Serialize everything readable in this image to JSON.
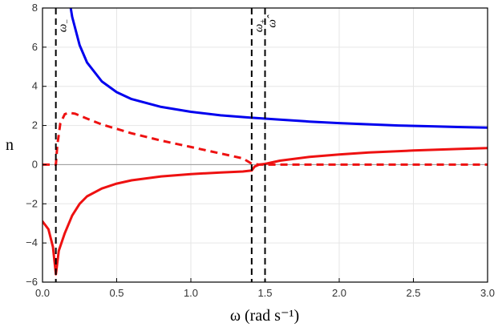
{
  "chart_data": {
    "type": "line",
    "title": "",
    "xlabel": "ω (rad s⁻¹)",
    "ylabel": "n",
    "xlim": [
      0,
      3
    ],
    "ylim": [
      -6,
      8
    ],
    "xticks": [
      "0.0",
      "0.5",
      "1.0",
      "1.5",
      "2.0",
      "2.5",
      "3.0"
    ],
    "yticks": [
      "−6",
      "−4",
      "−2",
      "0",
      "2",
      "4",
      "6",
      "8"
    ],
    "grid": true,
    "legend": "none",
    "vertical_lines": [
      {
        "x": 0.09,
        "label": "ω",
        "sub": "−"
      },
      {
        "x": 1.41,
        "label": "ω",
        "sub": "+"
      },
      {
        "x": 1.5,
        "label": "ω̂",
        "sub": ""
      }
    ],
    "series": [
      {
        "color": "#0000ee",
        "style": "solid",
        "points": [
          [
            0.19,
            8.0
          ],
          [
            0.2,
            7.55
          ],
          [
            0.25,
            6.1
          ],
          [
            0.3,
            5.22
          ],
          [
            0.4,
            4.25
          ],
          [
            0.5,
            3.7
          ],
          [
            0.6,
            3.35
          ],
          [
            0.8,
            2.95
          ],
          [
            1.0,
            2.7
          ],
          [
            1.2,
            2.52
          ],
          [
            1.4,
            2.4
          ],
          [
            1.6,
            2.3
          ],
          [
            1.8,
            2.2
          ],
          [
            2.0,
            2.12
          ],
          [
            2.2,
            2.06
          ],
          [
            2.4,
            2.0
          ],
          [
            2.6,
            1.96
          ],
          [
            2.8,
            1.92
          ],
          [
            3.0,
            1.89
          ]
        ]
      },
      {
        "color": "#ee1111",
        "style": "solid",
        "points": [
          [
            0.0,
            -2.9
          ],
          [
            0.04,
            -3.3
          ],
          [
            0.07,
            -4.2
          ],
          [
            0.09,
            -5.6
          ],
          [
            0.11,
            -4.4
          ],
          [
            0.15,
            -3.5
          ],
          [
            0.2,
            -2.6
          ],
          [
            0.25,
            -2.0
          ],
          [
            0.3,
            -1.62
          ],
          [
            0.4,
            -1.22
          ],
          [
            0.5,
            -0.97
          ],
          [
            0.6,
            -0.8
          ],
          [
            0.8,
            -0.6
          ],
          [
            1.0,
            -0.48
          ],
          [
            1.2,
            -0.4
          ],
          [
            1.35,
            -0.35
          ],
          [
            1.41,
            -0.3
          ],
          [
            1.43,
            -0.1
          ],
          [
            1.46,
            0.0
          ],
          [
            1.5,
            0.04
          ],
          [
            1.6,
            0.2
          ],
          [
            1.8,
            0.4
          ],
          [
            2.0,
            0.52
          ],
          [
            2.2,
            0.62
          ],
          [
            2.5,
            0.72
          ],
          [
            2.8,
            0.8
          ],
          [
            3.0,
            0.85
          ]
        ]
      },
      {
        "color": "#ee1111",
        "style": "dashed",
        "points": [
          [
            0.0,
            0.0
          ],
          [
            0.09,
            0.0
          ],
          [
            0.1,
            1.0
          ],
          [
            0.12,
            2.1
          ],
          [
            0.15,
            2.58
          ],
          [
            0.18,
            2.65
          ],
          [
            0.22,
            2.6
          ],
          [
            0.3,
            2.35
          ],
          [
            0.4,
            2.05
          ],
          [
            0.6,
            1.6
          ],
          [
            0.8,
            1.23
          ],
          [
            1.0,
            0.9
          ],
          [
            1.2,
            0.57
          ],
          [
            1.35,
            0.32
          ],
          [
            1.41,
            0.05
          ],
          [
            1.46,
            0.0
          ],
          [
            2.0,
            0.0
          ],
          [
            3.0,
            0.0
          ]
        ]
      }
    ]
  }
}
